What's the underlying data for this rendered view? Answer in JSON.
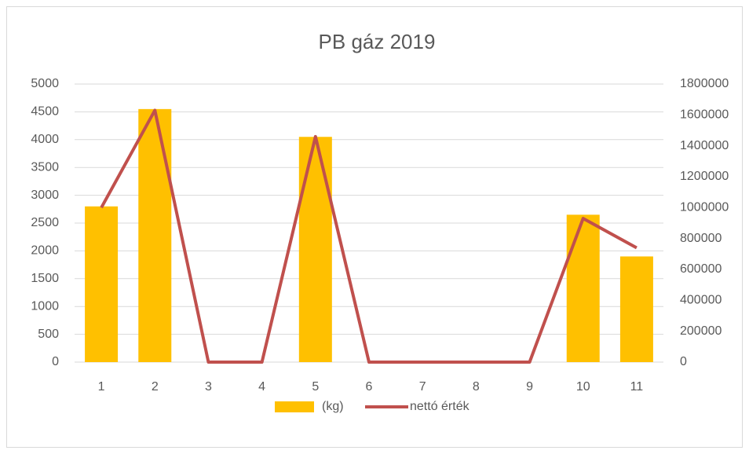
{
  "chart_data": {
    "type": "bar",
    "title": "PB gáz 2019",
    "categories": [
      "1",
      "2",
      "3",
      "4",
      "5",
      "6",
      "7",
      "8",
      "9",
      "10",
      "11"
    ],
    "series": [
      {
        "name": "(kg)",
        "color": "#ffc000",
        "values": [
          2800,
          4550,
          0,
          0,
          4050,
          0,
          0,
          0,
          0,
          2650,
          1900
        ]
      },
      {
        "name": "nettó érték",
        "type": "line",
        "axis": "y2",
        "color": "#c0504d",
        "values": [
          1000000,
          1630000,
          0,
          0,
          1460000,
          0,
          0,
          0,
          0,
          930000,
          740000
        ]
      }
    ],
    "ylim": [
      0,
      5000
    ],
    "yticks": [
      0,
      500,
      1000,
      1500,
      2000,
      2500,
      3000,
      3500,
      4000,
      4500,
      5000
    ],
    "y2lim": [
      0,
      1800000
    ],
    "y2ticks": [
      0,
      200000,
      400000,
      600000,
      800000,
      1000000,
      1200000,
      1400000,
      1600000,
      1800000
    ],
    "grid": true,
    "legend": "bottom"
  }
}
